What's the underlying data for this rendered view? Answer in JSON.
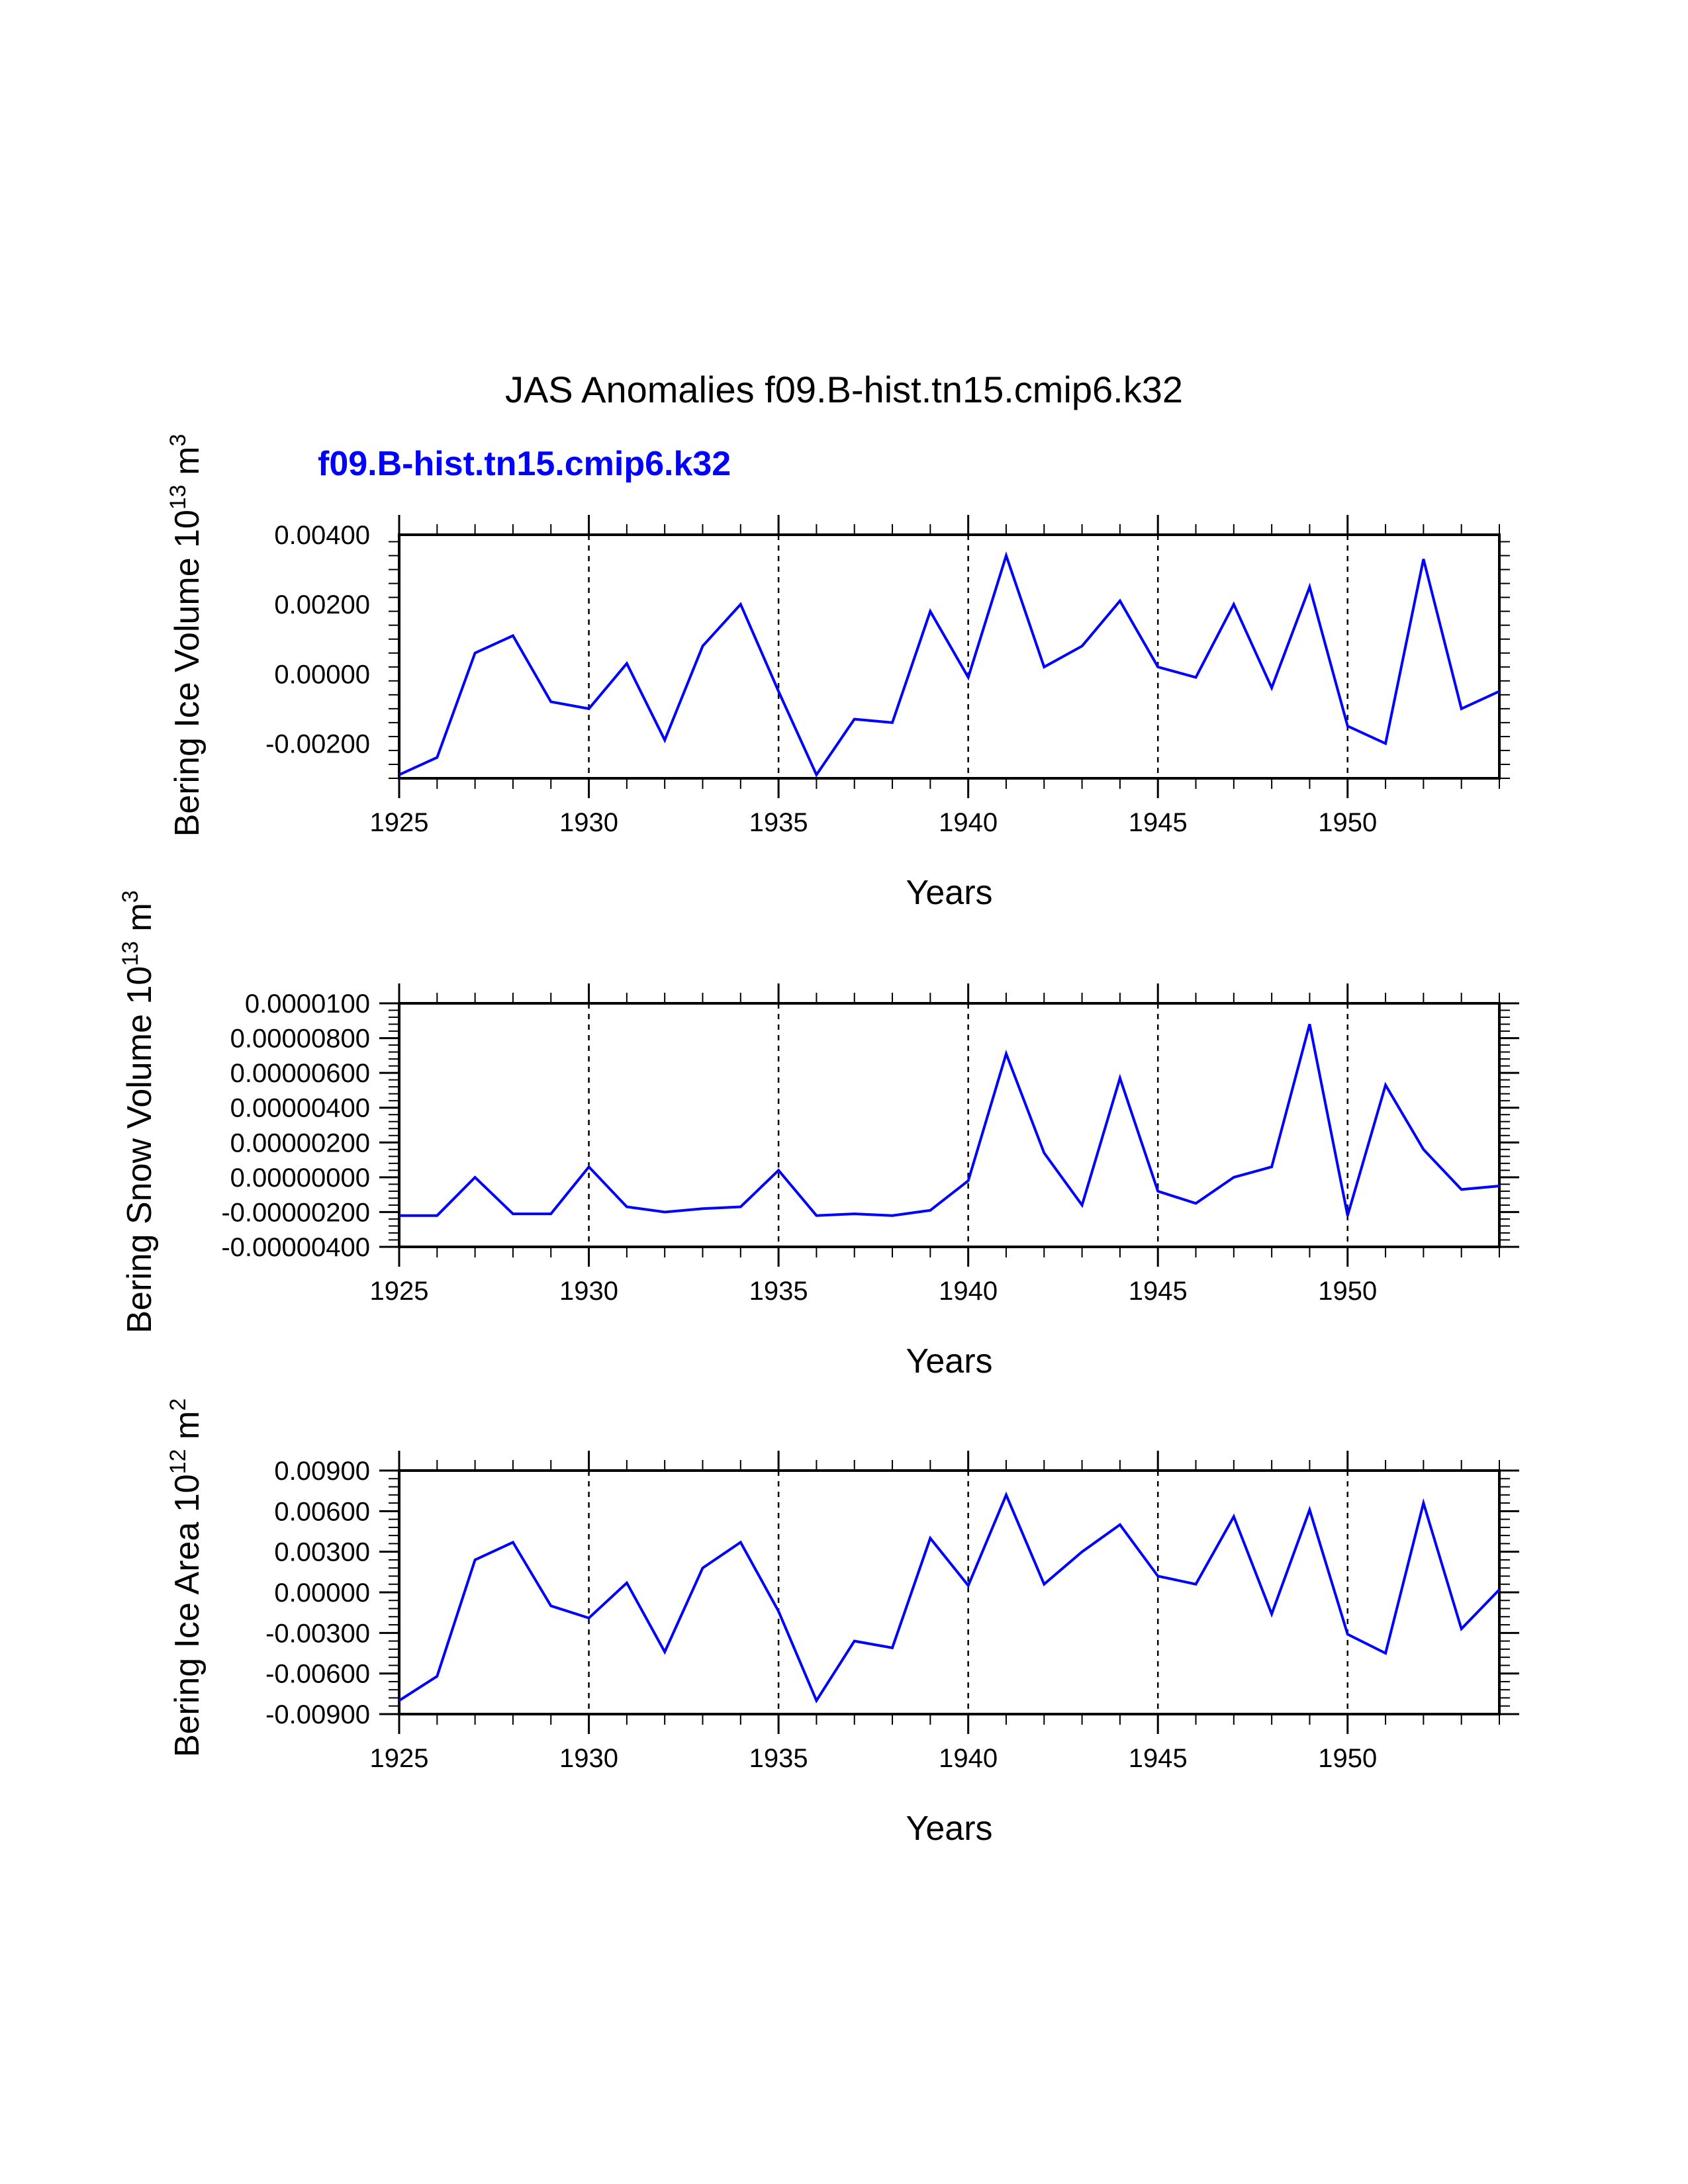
{
  "title": "JAS Anomalies f09.B-hist.tn15.cmip6.k32",
  "legend_label": "f09.B-hist.tn15.cmip6.k32",
  "series_color": "#0000ff",
  "chart_data": [
    {
      "type": "line",
      "name": "ice_volume",
      "ylabel": "Bering Ice Volume 10^13 m^3",
      "ylabel_main": "Bering Ice Volume 10",
      "ylabel_exp": "13",
      "ylabel_unit": "m",
      "ylabel_unit_exp": "3",
      "xlabel": "Years",
      "xlim": [
        1925,
        1954
      ],
      "ylim": [
        -0.003,
        0.004
      ],
      "yticks": [
        0.004,
        0.002,
        0.0,
        -0.002
      ],
      "ytick_labels": [
        "0.00400",
        "0.00200",
        "0.00000",
        "-0.00200"
      ],
      "xticks": [
        1925,
        1930,
        1935,
        1940,
        1945,
        1950
      ],
      "xtick_labels": [
        "1925",
        "1930",
        "1935",
        "1940",
        "1945",
        "1950"
      ],
      "grid_x": [
        1930,
        1935,
        1940,
        1945,
        1950
      ],
      "x": [
        1925,
        1926,
        1927,
        1928,
        1929,
        1930,
        1931,
        1932,
        1933,
        1934,
        1935,
        1936,
        1937,
        1938,
        1939,
        1940,
        1941,
        1942,
        1943,
        1944,
        1945,
        1946,
        1947,
        1948,
        1949,
        1950,
        1951,
        1952,
        1953,
        1954
      ],
      "values": [
        -0.0029,
        -0.0024,
        0.0006,
        0.0011,
        -0.0008,
        -0.001,
        0.0003,
        -0.0019,
        0.0008,
        0.002,
        -0.0005,
        -0.0029,
        -0.0013,
        -0.0014,
        0.0018,
        -0.0001,
        0.0034,
        0.0002,
        0.0008,
        0.0021,
        0.0002,
        -0.0001,
        0.002,
        -0.0004,
        0.0025,
        -0.0015,
        -0.002,
        0.0033,
        -0.001,
        -0.0005
      ]
    },
    {
      "type": "line",
      "name": "snow_volume",
      "ylabel": "Bering Snow Volume 10^13 m^3",
      "ylabel_main": "Bering Snow Volume 10",
      "ylabel_exp": "13",
      "ylabel_unit": "m",
      "ylabel_unit_exp": "3",
      "xlabel": "Years",
      "xlim": [
        1925,
        1954
      ],
      "ylim": [
        -4e-06,
        1e-05
      ],
      "yticks": [
        1e-05,
        8e-06,
        6e-06,
        4e-06,
        2e-06,
        0.0,
        -2e-06,
        -4e-06
      ],
      "ytick_labels": [
        "0.0000100",
        "0.00000800",
        "0.00000600",
        "0.00000400",
        "0.00000200",
        "0.00000000",
        "-0.00000200",
        "-0.00000400"
      ],
      "xticks": [
        1925,
        1930,
        1935,
        1940,
        1945,
        1950
      ],
      "xtick_labels": [
        "1925",
        "1930",
        "1935",
        "1940",
        "1945",
        "1950"
      ],
      "grid_x": [
        1930,
        1935,
        1940,
        1945,
        1950
      ],
      "x": [
        1925,
        1926,
        1927,
        1928,
        1929,
        1930,
        1931,
        1932,
        1933,
        1934,
        1935,
        1936,
        1937,
        1938,
        1939,
        1940,
        1941,
        1942,
        1943,
        1944,
        1945,
        1946,
        1947,
        1948,
        1949,
        1950,
        1951,
        1952,
        1953,
        1954
      ],
      "values": [
        -2.2e-06,
        -2.2e-06,
        0.0,
        -2.1e-06,
        -2.1e-06,
        6e-07,
        -1.7e-06,
        -2e-06,
        -1.8e-06,
        -1.7e-06,
        4e-07,
        -2.2e-06,
        -2.1e-06,
        -2.2e-06,
        -1.9e-06,
        -2e-07,
        7.1e-06,
        1.4e-06,
        -1.6e-06,
        5.7e-06,
        -8e-07,
        -1.5e-06,
        0.0,
        6e-07,
        8.8e-06,
        -2.2e-06,
        5.3e-06,
        1.6e-06,
        -7e-07,
        -5e-07
      ]
    },
    {
      "type": "line",
      "name": "ice_area",
      "ylabel": "Bering Ice Area 10^12 m^2",
      "ylabel_main": "Bering Ice Area 10",
      "ylabel_exp": "12",
      "ylabel_unit": "m",
      "ylabel_unit_exp": "2",
      "xlabel": "Years",
      "xlim": [
        1925,
        1954
      ],
      "ylim": [
        -0.009,
        0.009
      ],
      "yticks": [
        0.009,
        0.006,
        0.003,
        0.0,
        -0.003,
        -0.006,
        -0.009
      ],
      "ytick_labels": [
        "0.00900",
        "0.00600",
        "0.00300",
        "0.00000",
        "-0.00300",
        "-0.00600",
        "-0.00900"
      ],
      "xticks": [
        1925,
        1930,
        1935,
        1940,
        1945,
        1950
      ],
      "xtick_labels": [
        "1925",
        "1930",
        "1935",
        "1940",
        "1945",
        "1950"
      ],
      "grid_x": [
        1930,
        1935,
        1940,
        1945,
        1950
      ],
      "x": [
        1925,
        1926,
        1927,
        1928,
        1929,
        1930,
        1931,
        1932,
        1933,
        1934,
        1935,
        1936,
        1937,
        1938,
        1939,
        1940,
        1941,
        1942,
        1943,
        1944,
        1945,
        1946,
        1947,
        1948,
        1949,
        1950,
        1951,
        1952,
        1953,
        1954
      ],
      "values": [
        -0.008,
        -0.0062,
        0.0024,
        0.0037,
        -0.001,
        -0.0019,
        0.0007,
        -0.0044,
        0.0018,
        0.0037,
        -0.0014,
        -0.008,
        -0.0036,
        -0.0041,
        0.004,
        0.0005,
        0.0072,
        0.0006,
        0.003,
        0.005,
        0.0012,
        0.0006,
        0.0056,
        -0.0016,
        0.0061,
        -0.0031,
        -0.0045,
        0.0066,
        -0.0027,
        0.0002
      ]
    }
  ]
}
